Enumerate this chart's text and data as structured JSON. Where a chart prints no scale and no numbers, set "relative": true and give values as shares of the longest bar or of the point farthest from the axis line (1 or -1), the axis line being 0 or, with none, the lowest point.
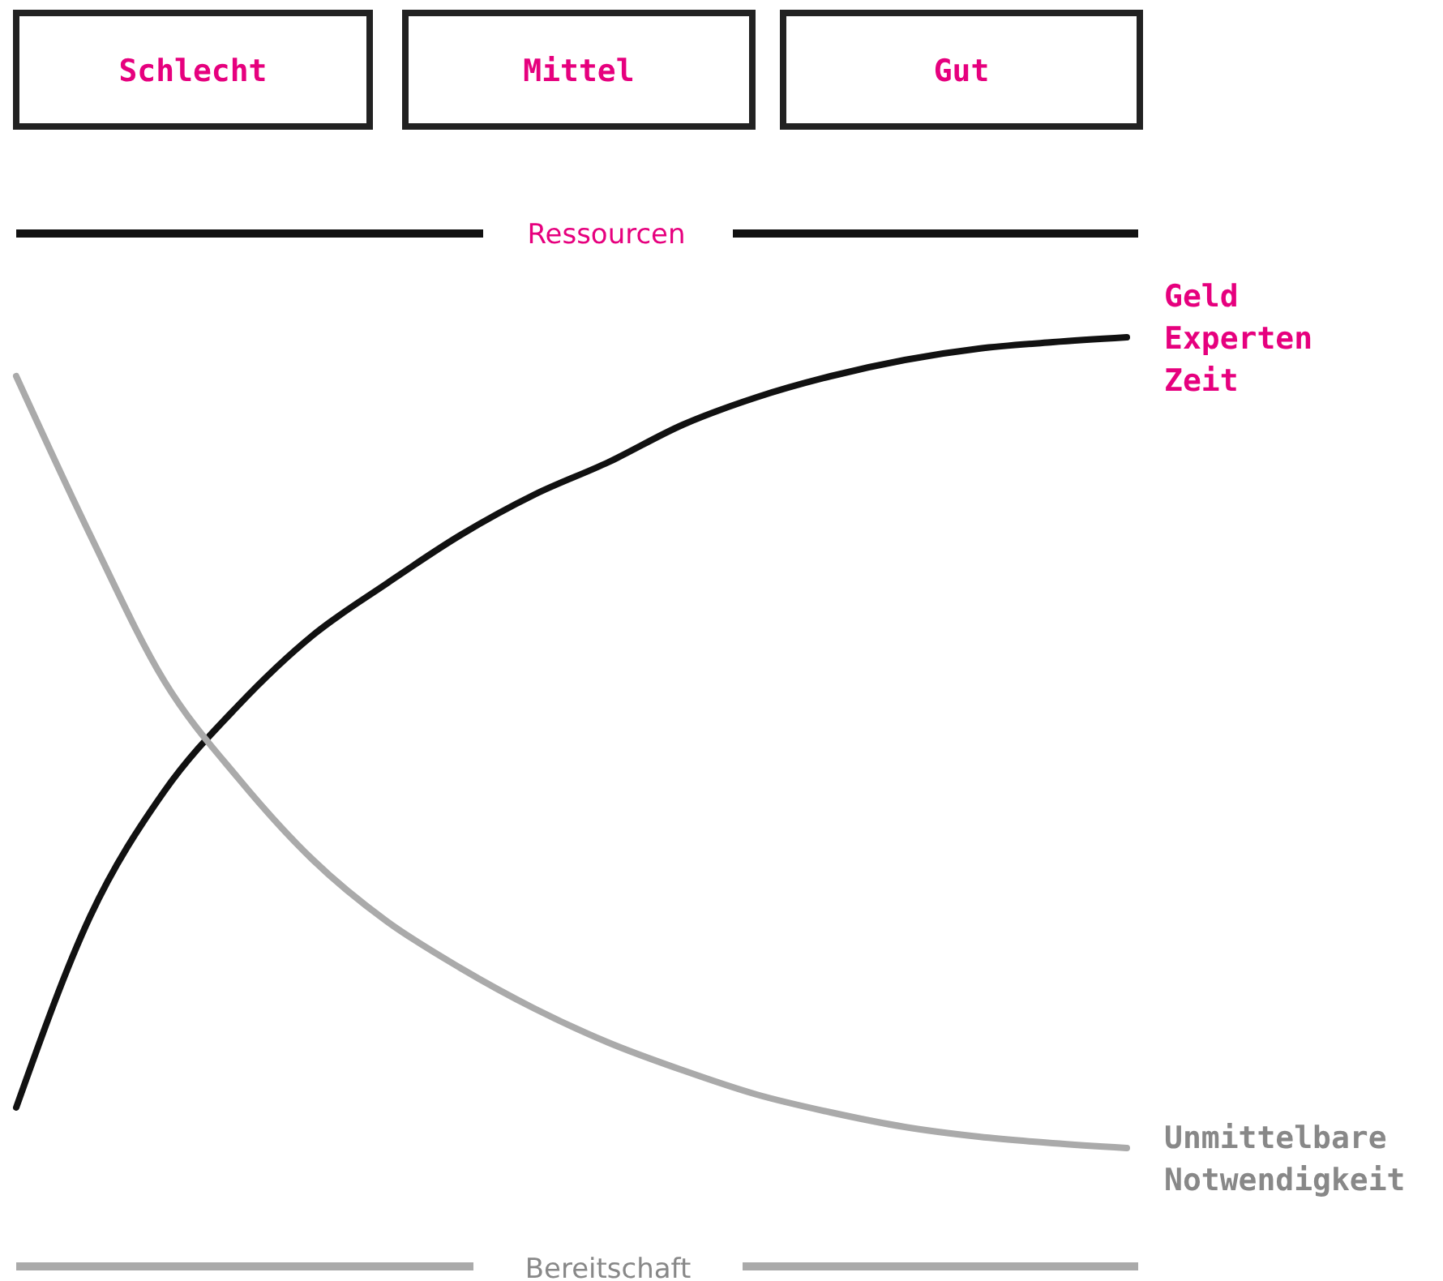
{
  "chart_data": {
    "type": "line",
    "relative": true,
    "title": "Ressourcen",
    "xlabel": "Bereitschaft",
    "annotations": [
      "Schlecht",
      "Mittel",
      "Gut"
    ],
    "categories": [
      null,
      null,
      null,
      null,
      null,
      null,
      null,
      null,
      null,
      null,
      null,
      null,
      null,
      null,
      null,
      null
    ],
    "grid": false,
    "marker": "none",
    "line_style": "solid",
    "series": [
      {
        "name": "Geld Experten Zeit",
        "color": "#111111",
        "values": [
          0.05,
          0.286,
          0.44,
          0.546,
          0.632,
          0.696,
          0.756,
          0.806,
          0.846,
          0.892,
          0.926,
          0.952,
          0.972,
          0.986,
          0.994,
          1
        ]
      },
      {
        "name": "Unmittelbare Notwendigkeit",
        "color": "#aaaaaa",
        "values": [
          0.952,
          0.756,
          0.576,
          0.456,
          0.356,
          0.28,
          0.222,
          0.172,
          0.13,
          0.096,
          0.066,
          0.044,
          0.026,
          0.014,
          0.006,
          0
        ]
      }
    ]
  }
}
